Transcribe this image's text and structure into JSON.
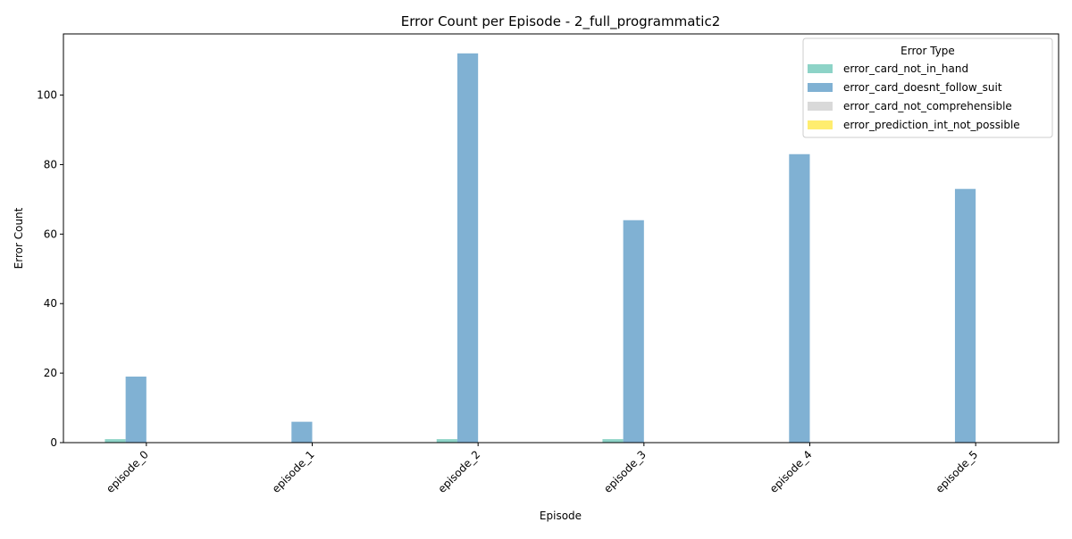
{
  "chart_data": {
    "type": "bar",
    "title": "Error Count per Episode - 2_full_programmatic2",
    "xlabel": "Episode",
    "ylabel": "Error Count",
    "categories": [
      "episode_0",
      "episode_1",
      "episode_2",
      "episode_3",
      "episode_4",
      "episode_5"
    ],
    "ylim": [
      0,
      117.6
    ],
    "yticks": [
      0,
      20,
      40,
      60,
      80,
      100
    ],
    "grid": false,
    "legend": {
      "title": "Error Type",
      "placement": "upper right"
    },
    "series": [
      {
        "name": "error_card_not_in_hand",
        "color": "#8dd3c7",
        "values": [
          1,
          0,
          1,
          1,
          0,
          0
        ]
      },
      {
        "name": "error_card_doesnt_follow_suit",
        "color": "#80b1d3",
        "values": [
          19,
          6,
          112,
          64,
          83,
          73
        ]
      },
      {
        "name": "error_card_not_comprehensible",
        "color": "#d9d9d9",
        "values": [
          0,
          0,
          0,
          0,
          0,
          0
        ]
      },
      {
        "name": "error_prediction_int_not_possible",
        "color": "#ffed6f",
        "values": [
          0,
          0,
          0,
          0,
          0,
          0
        ]
      }
    ]
  }
}
